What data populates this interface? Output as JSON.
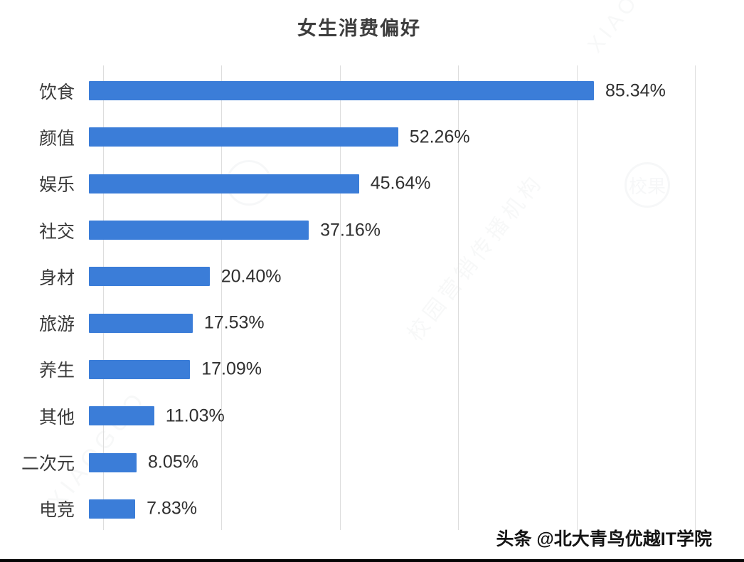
{
  "chart_data": {
    "type": "bar",
    "orientation": "horizontal",
    "title": "女生消费偏好",
    "categories": [
      "饮食",
      "颜值",
      "娱乐",
      "社交",
      "身材",
      "旅游",
      "养生",
      "其他",
      "二次元",
      "电竞"
    ],
    "values": [
      85.34,
      52.26,
      45.64,
      37.16,
      20.4,
      17.53,
      17.09,
      11.03,
      8.05,
      7.83
    ],
    "value_labels": [
      "85.34%",
      "52.26%",
      "45.64%",
      "37.16%",
      "20.40%",
      "17.53%",
      "17.09%",
      "11.03%",
      "8.05%",
      "7.83%"
    ],
    "xlabel": "",
    "ylabel": "",
    "xlim": [
      0,
      100
    ],
    "gridlines_at": [
      0,
      20,
      40,
      60,
      80,
      100
    ],
    "grid": true,
    "legend": false,
    "bar_color": "#3b7dd8"
  },
  "footer": {
    "credit": "头条 @北大青鸟优越IT学院"
  },
  "watermarks": {
    "badge": "校果",
    "brand": "XIAOGUO",
    "slogan": "校园营销传播机构"
  }
}
